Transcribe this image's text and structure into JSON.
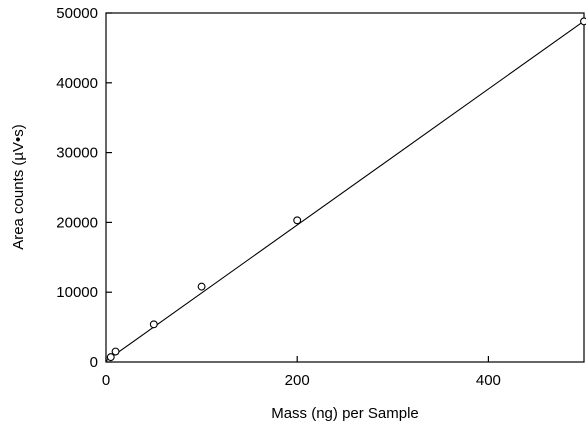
{
  "chart_data": {
    "type": "scatter",
    "title": "",
    "xlabel": "Mass (ng) per Sample",
    "ylabel": "Area counts (µV•s)",
    "xlim": [
      0,
      500
    ],
    "ylim": [
      0,
      50000
    ],
    "x_ticks": [
      0,
      200,
      400
    ],
    "x_tick_labels": [
      "0",
      "200",
      "400"
    ],
    "y_ticks": [
      0,
      10000,
      20000,
      30000,
      40000,
      50000
    ],
    "y_tick_labels": [
      "0",
      "10000",
      "20000",
      "30000",
      "40000",
      "50000"
    ],
    "grid": false,
    "legend": "none",
    "series": [
      {
        "marker": "open-circle",
        "points": [
          {
            "x": 5,
            "y": 700
          },
          {
            "x": 10,
            "y": 1500
          },
          {
            "x": 50,
            "y": 5400
          },
          {
            "x": 100,
            "y": 10800
          },
          {
            "x": 200,
            "y": 20300
          },
          {
            "x": 500,
            "y": 48800
          }
        ]
      }
    ],
    "fit_line": {
      "x": [
        0,
        500
      ],
      "y": [
        150,
        48850
      ]
    }
  }
}
